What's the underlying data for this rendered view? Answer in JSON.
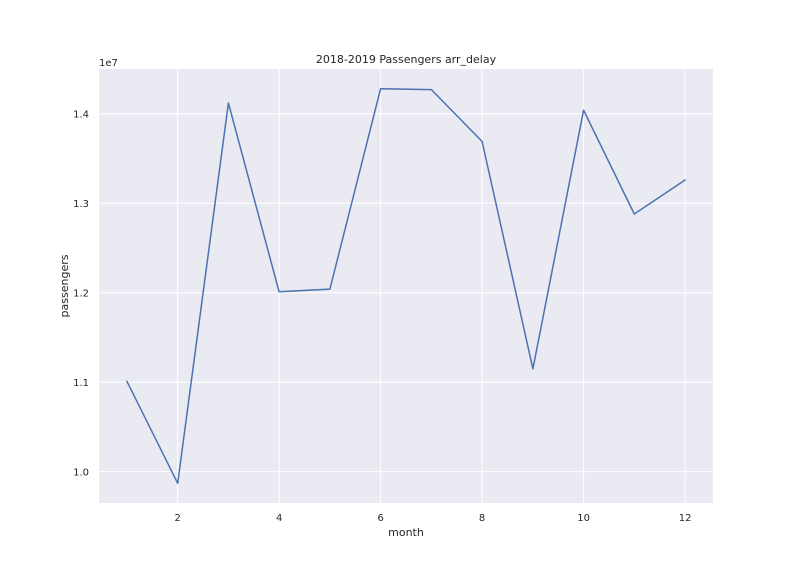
{
  "chart_data": {
    "type": "line",
    "title": "2018-2019 Passengers arr_delay",
    "xlabel": "month",
    "ylabel": "passengers",
    "y_offset_label": "1e7",
    "x": [
      1,
      2,
      3,
      4,
      5,
      6,
      7,
      8,
      9,
      10,
      11,
      12
    ],
    "series": [
      {
        "values": [
          11010000,
          9870000,
          14120000,
          12010000,
          12040000,
          14280000,
          14270000,
          13690000,
          11150000,
          14040000,
          12880000,
          13260000
        ],
        "color": "#4c72b0"
      }
    ],
    "xlim": [
      0.45,
      12.55
    ],
    "ylim": [
      9650000,
      14500000
    ],
    "xticks": [
      2,
      4,
      6,
      8,
      10,
      12
    ],
    "xtick_labels": [
      "2",
      "4",
      "6",
      "8",
      "10",
      "12"
    ],
    "yticks": [
      10000000,
      11000000,
      12000000,
      13000000,
      14000000
    ],
    "ytick_labels": [
      "1.0",
      "1.1",
      "1.2",
      "1.3",
      "1.4"
    ],
    "grid": true,
    "background": "#eaeaf2",
    "grid_color": "#ffffff"
  }
}
